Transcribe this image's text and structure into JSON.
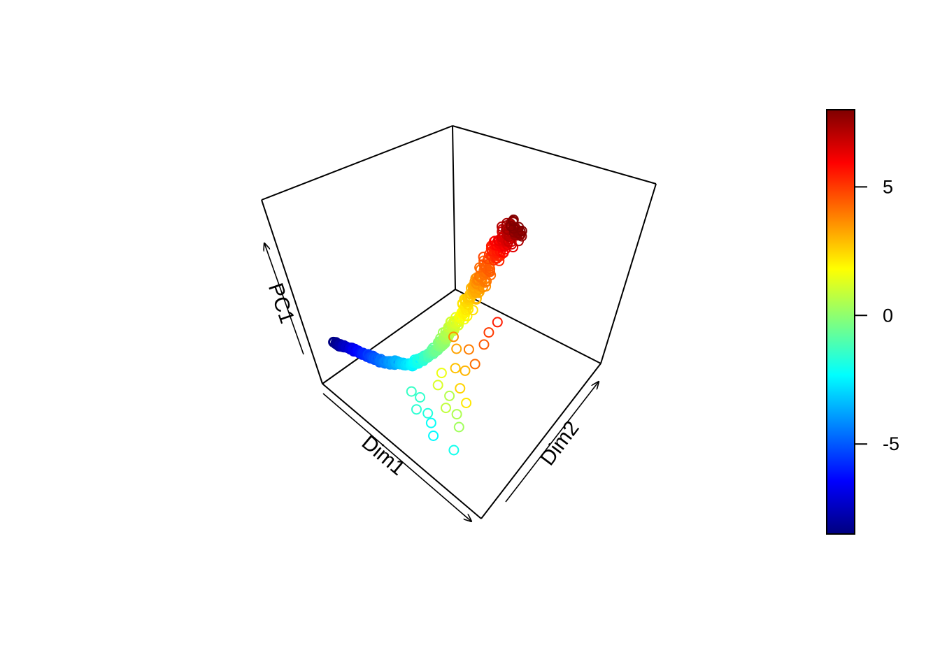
{
  "chart_data": {
    "type": "scatter",
    "projection": "3d-box",
    "title": "",
    "axes": {
      "x": {
        "label": "Dim1"
      },
      "y": {
        "label": "Dim2"
      },
      "z": {
        "label": "PC1"
      }
    },
    "grid": false,
    "marker": "open-circle",
    "color_scale": {
      "palette": "jet",
      "range": [
        -8.5,
        8.0
      ],
      "ticks": [
        5,
        0,
        -5
      ],
      "tick_labels": [
        "5",
        "0",
        "-5"
      ],
      "colors": [
        "#00007F",
        "#0000FF",
        "#007FFF",
        "#00FFFF",
        "#7FFF7F",
        "#FFFF00",
        "#FF7F00",
        "#FF0000",
        "#7F0000"
      ]
    },
    "curve": {
      "t": [
        -8.5,
        -6.5,
        -4.5,
        -2.5,
        -0.5,
        1.5,
        3.5,
        5.5,
        7.0,
        8.0
      ],
      "dim1": [
        0.05,
        0.14,
        0.25,
        0.38,
        0.5,
        0.6,
        0.68,
        0.74,
        0.78,
        0.8
      ],
      "dim2": [
        0.12,
        0.18,
        0.24,
        0.32,
        0.42,
        0.55,
        0.68,
        0.82,
        0.9,
        0.95
      ],
      "pc1": [
        0.2,
        0.19,
        0.18,
        0.22,
        0.34,
        0.52,
        0.7,
        0.86,
        0.94,
        0.96
      ]
    },
    "outliers": [
      {
        "t": -2.0,
        "dim1": 0.7,
        "dim2": 0.18,
        "pc1": 0.06
      },
      {
        "t": -2.4,
        "dim1": 0.62,
        "dim2": 0.14,
        "pc1": 0.1
      },
      {
        "t": -2.2,
        "dim1": 0.58,
        "dim2": 0.18,
        "pc1": 0.12
      },
      {
        "t": -1.8,
        "dim1": 0.55,
        "dim2": 0.2,
        "pc1": 0.14
      },
      {
        "t": -1.6,
        "dim1": 0.52,
        "dim2": 0.16,
        "pc1": 0.16
      },
      {
        "t": -1.5,
        "dim1": 0.5,
        "dim2": 0.22,
        "pc1": 0.18
      },
      {
        "t": -1.4,
        "dim1": 0.47,
        "dim2": 0.2,
        "pc1": 0.2
      },
      {
        "t": 0.3,
        "dim1": 0.64,
        "dim2": 0.3,
        "pc1": 0.08
      },
      {
        "t": 0.5,
        "dim1": 0.6,
        "dim2": 0.34,
        "pc1": 0.1
      },
      {
        "t": 0.8,
        "dim1": 0.58,
        "dim2": 0.3,
        "pc1": 0.14
      },
      {
        "t": 0.6,
        "dim1": 0.56,
        "dim2": 0.36,
        "pc1": 0.16
      },
      {
        "t": 1.2,
        "dim1": 0.52,
        "dim2": 0.34,
        "pc1": 0.2
      },
      {
        "t": 1.5,
        "dim1": 0.5,
        "dim2": 0.4,
        "pc1": 0.22
      },
      {
        "t": 2.2,
        "dim1": 0.6,
        "dim2": 0.42,
        "pc1": 0.12
      },
      {
        "t": 2.5,
        "dim1": 0.56,
        "dim2": 0.44,
        "pc1": 0.16
      },
      {
        "t": 2.8,
        "dim1": 0.52,
        "dim2": 0.48,
        "pc1": 0.22
      },
      {
        "t": 3.0,
        "dim1": 0.54,
        "dim2": 0.52,
        "pc1": 0.2
      },
      {
        "t": 3.3,
        "dim1": 0.5,
        "dim2": 0.54,
        "pc1": 0.28
      },
      {
        "t": 3.6,
        "dim1": 0.48,
        "dim2": 0.56,
        "pc1": 0.32
      },
      {
        "t": 3.9,
        "dim1": 0.52,
        "dim2": 0.6,
        "pc1": 0.26
      },
      {
        "t": 4.2,
        "dim1": 0.56,
        "dim2": 0.58,
        "pc1": 0.22
      },
      {
        "t": 4.5,
        "dim1": 0.58,
        "dim2": 0.66,
        "pc1": 0.3
      },
      {
        "t": 5.0,
        "dim1": 0.6,
        "dim2": 0.7,
        "pc1": 0.36
      },
      {
        "t": 5.5,
        "dim1": 0.62,
        "dim2": 0.76,
        "pc1": 0.4
      }
    ]
  }
}
